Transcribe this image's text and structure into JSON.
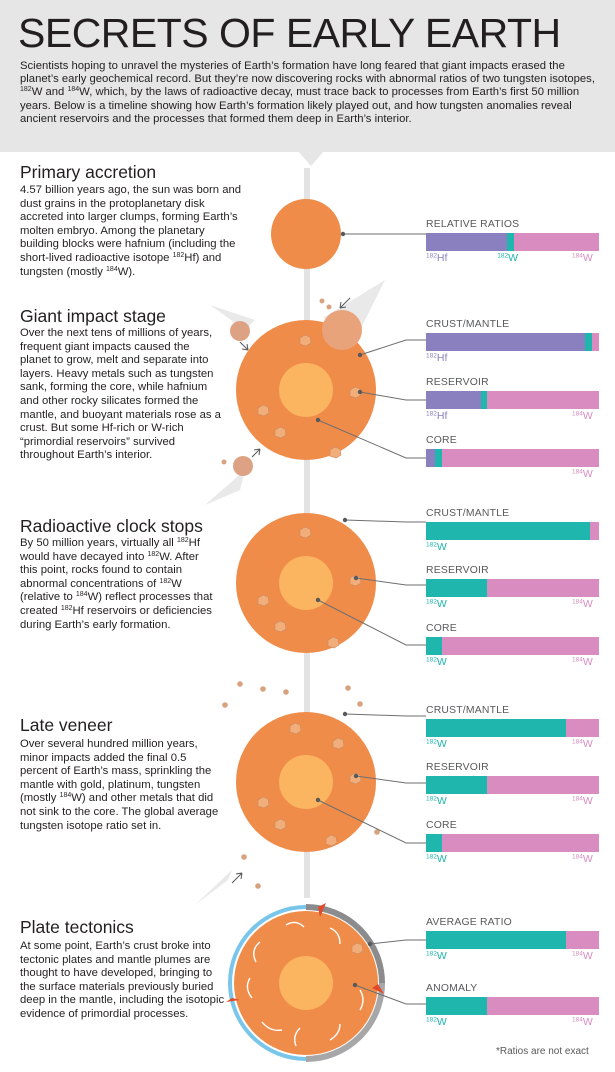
{
  "header": {
    "title": "SECRETS OF EARLY EARTH",
    "intro": "Scientists hoping to unravel the mysteries of Earth’s formation have long feared that giant impacts erased the planet’s early geochemical record. But they’re now discovering rocks with abnormal ratios of two tungsten isotopes, <sup>182</sup>W and <sup>184</sup>W, which, by the laws of radioactive decay, must trace back to processes from Earth’s first 50 million years. Below is a timeline showing how Earth’s formation likely played out, and how tungsten anomalies reveal ancient reservoirs and the processes that formed them deep in Earth’s interior."
  },
  "colors": {
    "hf": "#8a7fbf",
    "w182": "#1fb6ad",
    "w184": "#d98cc0",
    "earth_outer": "#f08c4a",
    "earth_core": "#fbb45f",
    "crust_outline": "#79c6ea"
  },
  "sections": [
    {
      "title": "Primary accretion",
      "body": "4.57 billion years ago, the sun was born and dust grains in the protoplanetary disk accreted into larger clumps, forming Earth’s molten embryo. Among the planetary building blocks were hafnium (including the short-lived radioactive isotope <sup>182</sup>Hf) and tungsten (mostly <sup>184</sup>W).",
      "bars": [
        {
          "label": "RELATIVE RATIOS",
          "hf": 0.47,
          "w182": 0.04,
          "w184": 0.49,
          "isotopes": [
            "<sup>182</sup>Hf",
            "<sup>182</sup>W",
            "<sup>184</sup>W"
          ]
        }
      ]
    },
    {
      "title": "Giant impact stage",
      "body": "Over the next tens of millions of years, frequent giant impacts caused the planet to grow, melt and separate into layers. Heavy metals such as tungsten sank, forming the core, while hafnium and other rocky silicates formed the mantle, and buoyant materials rose as a crust. But some Hf-rich or W-rich “primordial reservoirs” survived throughout Earth’s interior.",
      "bars": [
        {
          "label": "CRUST/MANTLE",
          "hf": 0.92,
          "w182": 0.04,
          "w184": 0.04,
          "isotopes": [
            "<sup>182</sup>Hf",
            "",
            ""
          ]
        },
        {
          "label": "RESERVOIR",
          "hf": 0.32,
          "w182": 0.03,
          "w184": 0.65,
          "isotopes": [
            "<sup>182</sup>Hf",
            "",
            "<sup>184</sup>W"
          ]
        },
        {
          "label": "CORE",
          "hf": 0.05,
          "w182": 0.04,
          "w184": 0.91,
          "isotopes": [
            "",
            "",
            "<sup>184</sup>W"
          ]
        }
      ]
    },
    {
      "title": "Radioactive clock stops",
      "body": "By 50 million years, virtually all <sup>182</sup>Hf would have decayed into <sup>182</sup>W. After this point, rocks found to contain abnormal concentrations of <sup>182</sup>W (relative to <sup>184</sup>W) reflect processes that created <sup>182</sup>Hf reservoirs or deficiencies during Earth’s early formation.",
      "bars": [
        {
          "label": "CRUST/MANTLE",
          "hf": 0,
          "w182": 0.95,
          "w184": 0.05,
          "isotopes": [
            "",
            "<sup>182</sup>W",
            ""
          ]
        },
        {
          "label": "RESERVOIR",
          "hf": 0,
          "w182": 0.35,
          "w184": 0.65,
          "isotopes": [
            "",
            "<sup>182</sup>W",
            "<sup>184</sup>W"
          ]
        },
        {
          "label": "CORE",
          "hf": 0,
          "w182": 0.09,
          "w184": 0.91,
          "isotopes": [
            "",
            "<sup>182</sup>W",
            "<sup>184</sup>W"
          ]
        }
      ]
    },
    {
      "title": "Late veneer",
      "body": "Over several hundred million years, minor impacts added the final 0.5 percent of Earth’s mass, sprinkling the mantle with gold, platinum, tungsten (mostly <sup>184</sup>W) and other metals that did not sink to the core. The global average tungsten isotope ratio set in.",
      "bars": [
        {
          "label": "CRUST/MANTLE",
          "hf": 0,
          "w182": 0.81,
          "w184": 0.19,
          "isotopes": [
            "",
            "<sup>182</sup>W",
            "<sup>184</sup>W"
          ]
        },
        {
          "label": "RESERVOIR",
          "hf": 0,
          "w182": 0.35,
          "w184": 0.65,
          "isotopes": [
            "",
            "<sup>182</sup>W",
            "<sup>184</sup>W"
          ]
        },
        {
          "label": "CORE",
          "hf": 0,
          "w182": 0.09,
          "w184": 0.91,
          "isotopes": [
            "",
            "<sup>182</sup>W",
            "<sup>184</sup>W"
          ]
        }
      ]
    },
    {
      "title": "Plate tectonics",
      "body": "At some point, Earth’s crust broke into tectonic plates and mantle plumes are thought to have developed, bringing to the surface materials previously buried deep in the mantle, including the isotopic evidence of primordial processes.",
      "bars": [
        {
          "label": "AVERAGE RATIO",
          "hf": 0,
          "w182": 0.81,
          "w184": 0.19,
          "isotopes": [
            "",
            "<sup>182</sup>W",
            "<sup>184</sup>W"
          ]
        },
        {
          "label": "ANOMALY",
          "hf": 0,
          "w182": 0.35,
          "w184": 0.65,
          "isotopes": [
            "",
            "<sup>182</sup>W",
            "<sup>184</sup>W"
          ]
        }
      ]
    }
  ],
  "footnote": "*Ratios are not exact"
}
